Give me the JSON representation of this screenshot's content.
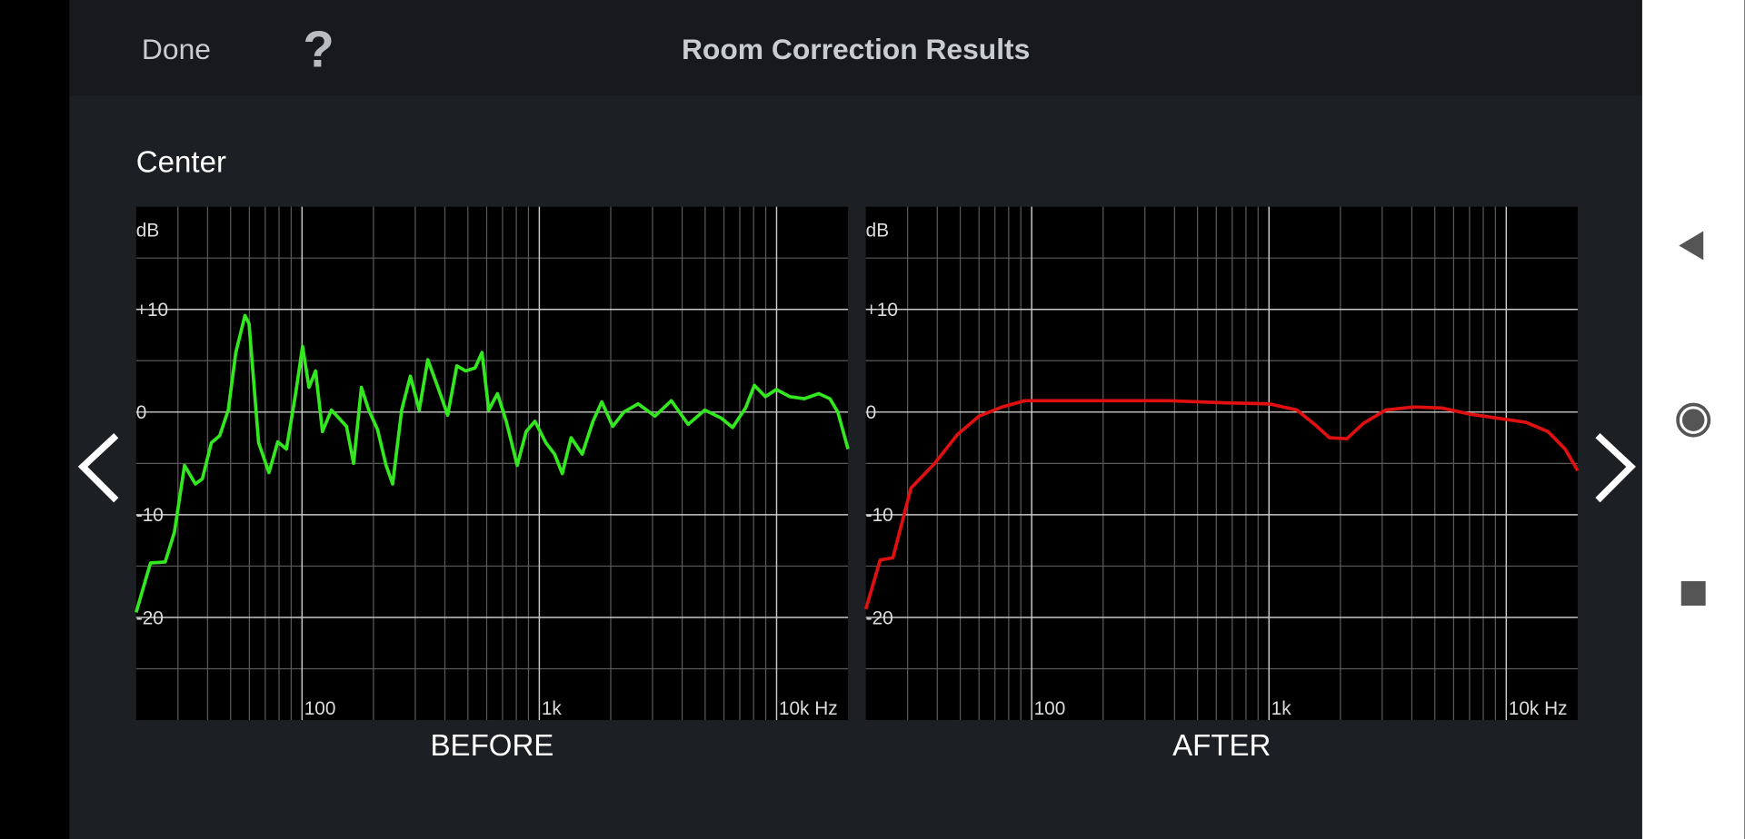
{
  "header": {
    "done": "Done",
    "help": "?",
    "title": "Room Correction Results"
  },
  "section": "Center",
  "chart_data": [
    {
      "type": "line",
      "title": "BEFORE",
      "ylabel": "dB",
      "xscale": "log",
      "grid": true,
      "xlim": [
        20,
        20000
      ],
      "ylim": [
        -30,
        20
      ],
      "xticks": [
        100,
        {
          "value": 1000,
          "label": "1k"
        },
        {
          "value": 10000,
          "label": "10k Hz"
        }
      ],
      "yticks": [
        {
          "value": 10,
          "label": "+10"
        },
        0,
        -10,
        -20
      ],
      "xminor": [
        30,
        40,
        50,
        60,
        70,
        80,
        90,
        200,
        300,
        400,
        500,
        600,
        700,
        800,
        900,
        2000,
        3000,
        4000,
        5000,
        6000,
        7000,
        8000,
        9000
      ],
      "yminor": [
        15,
        5,
        -5,
        -15,
        -25
      ],
      "x": [
        20,
        23,
        26.5,
        29,
        32,
        35.5,
        38,
        41.5,
        45,
        48.9,
        52.6,
        57.5,
        59.8,
        65.6,
        72.6,
        79,
        86,
        94,
        100.5,
        107,
        114,
        122,
        133,
        143,
        154,
        165,
        178,
        191,
        208,
        226,
        241,
        263,
        286,
        312,
        339,
        374,
        411,
        449,
        489,
        536,
        573,
        612,
        666,
        725,
        807,
        880,
        958,
        1066,
        1160,
        1250,
        1361,
        1516,
        1683,
        1834,
        2040,
        2270,
        2610,
        3070,
        3600,
        4240,
        4980,
        5850,
        6520,
        7400,
        8060,
        8970,
        9980,
        11350,
        13060,
        15050,
        16780,
        18100,
        20000
      ],
      "series": [
        {
          "name": "BEFORE",
          "color": "#33e81e",
          "values": [
            -19.5,
            -14.7,
            -14.6,
            -11.7,
            -5.2,
            -7,
            -6.5,
            -3,
            -2.3,
            0.2,
            5.8,
            9.4,
            8.6,
            -3,
            -5.9,
            -2.9,
            -3.6,
            1.8,
            6.4,
            2.4,
            4,
            -1.9,
            0.2,
            -0.6,
            -1.4,
            -5,
            2.4,
            0.2,
            -1.7,
            -5.2,
            -7,
            0.2,
            3.5,
            0.2,
            5.1,
            2.4,
            -0.3,
            4.5,
            4,
            4.3,
            5.8,
            0.2,
            1.8,
            -0.9,
            -5.2,
            -1.9,
            -0.9,
            -3,
            -4.1,
            -6,
            -2.5,
            -4.1,
            -0.9,
            1,
            -1.4,
            0,
            0.8,
            -0.4,
            1.1,
            -1.2,
            0.2,
            -0.6,
            -1.5,
            0.4,
            2.6,
            1.5,
            2.2,
            1.5,
            1.3,
            1.8,
            1.3,
            0,
            -3.6
          ]
        }
      ]
    },
    {
      "type": "line",
      "title": "AFTER",
      "ylabel": "dB",
      "xscale": "log",
      "grid": true,
      "xlim": [
        20,
        20000
      ],
      "ylim": [
        -30,
        20
      ],
      "xticks": [
        100,
        {
          "value": 1000,
          "label": "1k"
        },
        {
          "value": 10000,
          "label": "10k Hz"
        }
      ],
      "yticks": [
        {
          "value": 10,
          "label": "+10"
        },
        0,
        -10,
        -20
      ],
      "xminor": [
        30,
        40,
        50,
        60,
        70,
        80,
        90,
        200,
        300,
        400,
        500,
        600,
        700,
        800,
        900,
        2000,
        3000,
        4000,
        5000,
        6000,
        7000,
        8000,
        9000
      ],
      "yminor": [
        15,
        5,
        -5,
        -15,
        -25
      ],
      "x": [
        20,
        23,
        26,
        31,
        39,
        48.6,
        60,
        75,
        93.6,
        144,
        222,
        380,
        650,
        1000,
        1310,
        1540,
        1800,
        2130,
        2500,
        3100,
        4080,
        5350,
        7000,
        9200,
        12100,
        15000,
        17700,
        20000
      ],
      "series": [
        {
          "name": "AFTER",
          "color": "#e01010",
          "values": [
            -19.2,
            -14.4,
            -14.2,
            -7.4,
            -5,
            -2.2,
            -0.4,
            0.5,
            1.1,
            1.1,
            1.1,
            1.1,
            0.9,
            0.8,
            0.2,
            -1.1,
            -2.5,
            -2.6,
            -1.1,
            0.2,
            0.5,
            0.4,
            -0.2,
            -0.6,
            -1,
            -1.9,
            -3.6,
            -5.7
          ]
        }
      ]
    }
  ]
}
